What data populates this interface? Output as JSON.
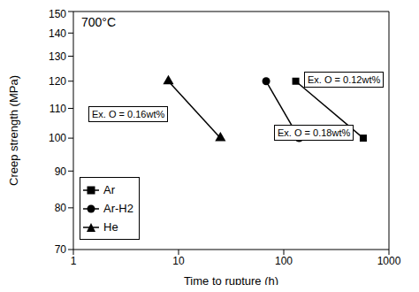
{
  "chart_data": {
    "type": "scatter",
    "x_label": "Time to rupture (h)",
    "y_label": "Creep strength (MPa)",
    "log": true,
    "xlim": [
      1,
      1000
    ],
    "xticks": [
      1,
      10,
      100,
      1000
    ],
    "ylim": [
      70,
      150
    ],
    "yticks": [
      70,
      80,
      90,
      100,
      110,
      120,
      130,
      140,
      150
    ],
    "legend": "lower left",
    "grid": false,
    "annotations": [
      "700°C",
      "Ex. O = 0.12wt%",
      "Ex. O = 0.18wt%",
      "Ex. O = 0.16wt%"
    ],
    "series": [
      {
        "name": "Ar",
        "color": "#000000",
        "marker": "square",
        "line_style": "solid",
        "x": [
          130,
          570
        ],
        "values": [
          120,
          100
        ]
      },
      {
        "name": "Ar-H2",
        "color": "#000000",
        "marker": "circle",
        "line_style": "solid",
        "x": [
          68,
          140
        ],
        "values": [
          120,
          100
        ]
      },
      {
        "name": "He",
        "color": "#000000",
        "marker": "triangle",
        "line_style": "solid",
        "x": [
          8,
          25
        ],
        "values": [
          120,
          100
        ]
      }
    ]
  }
}
